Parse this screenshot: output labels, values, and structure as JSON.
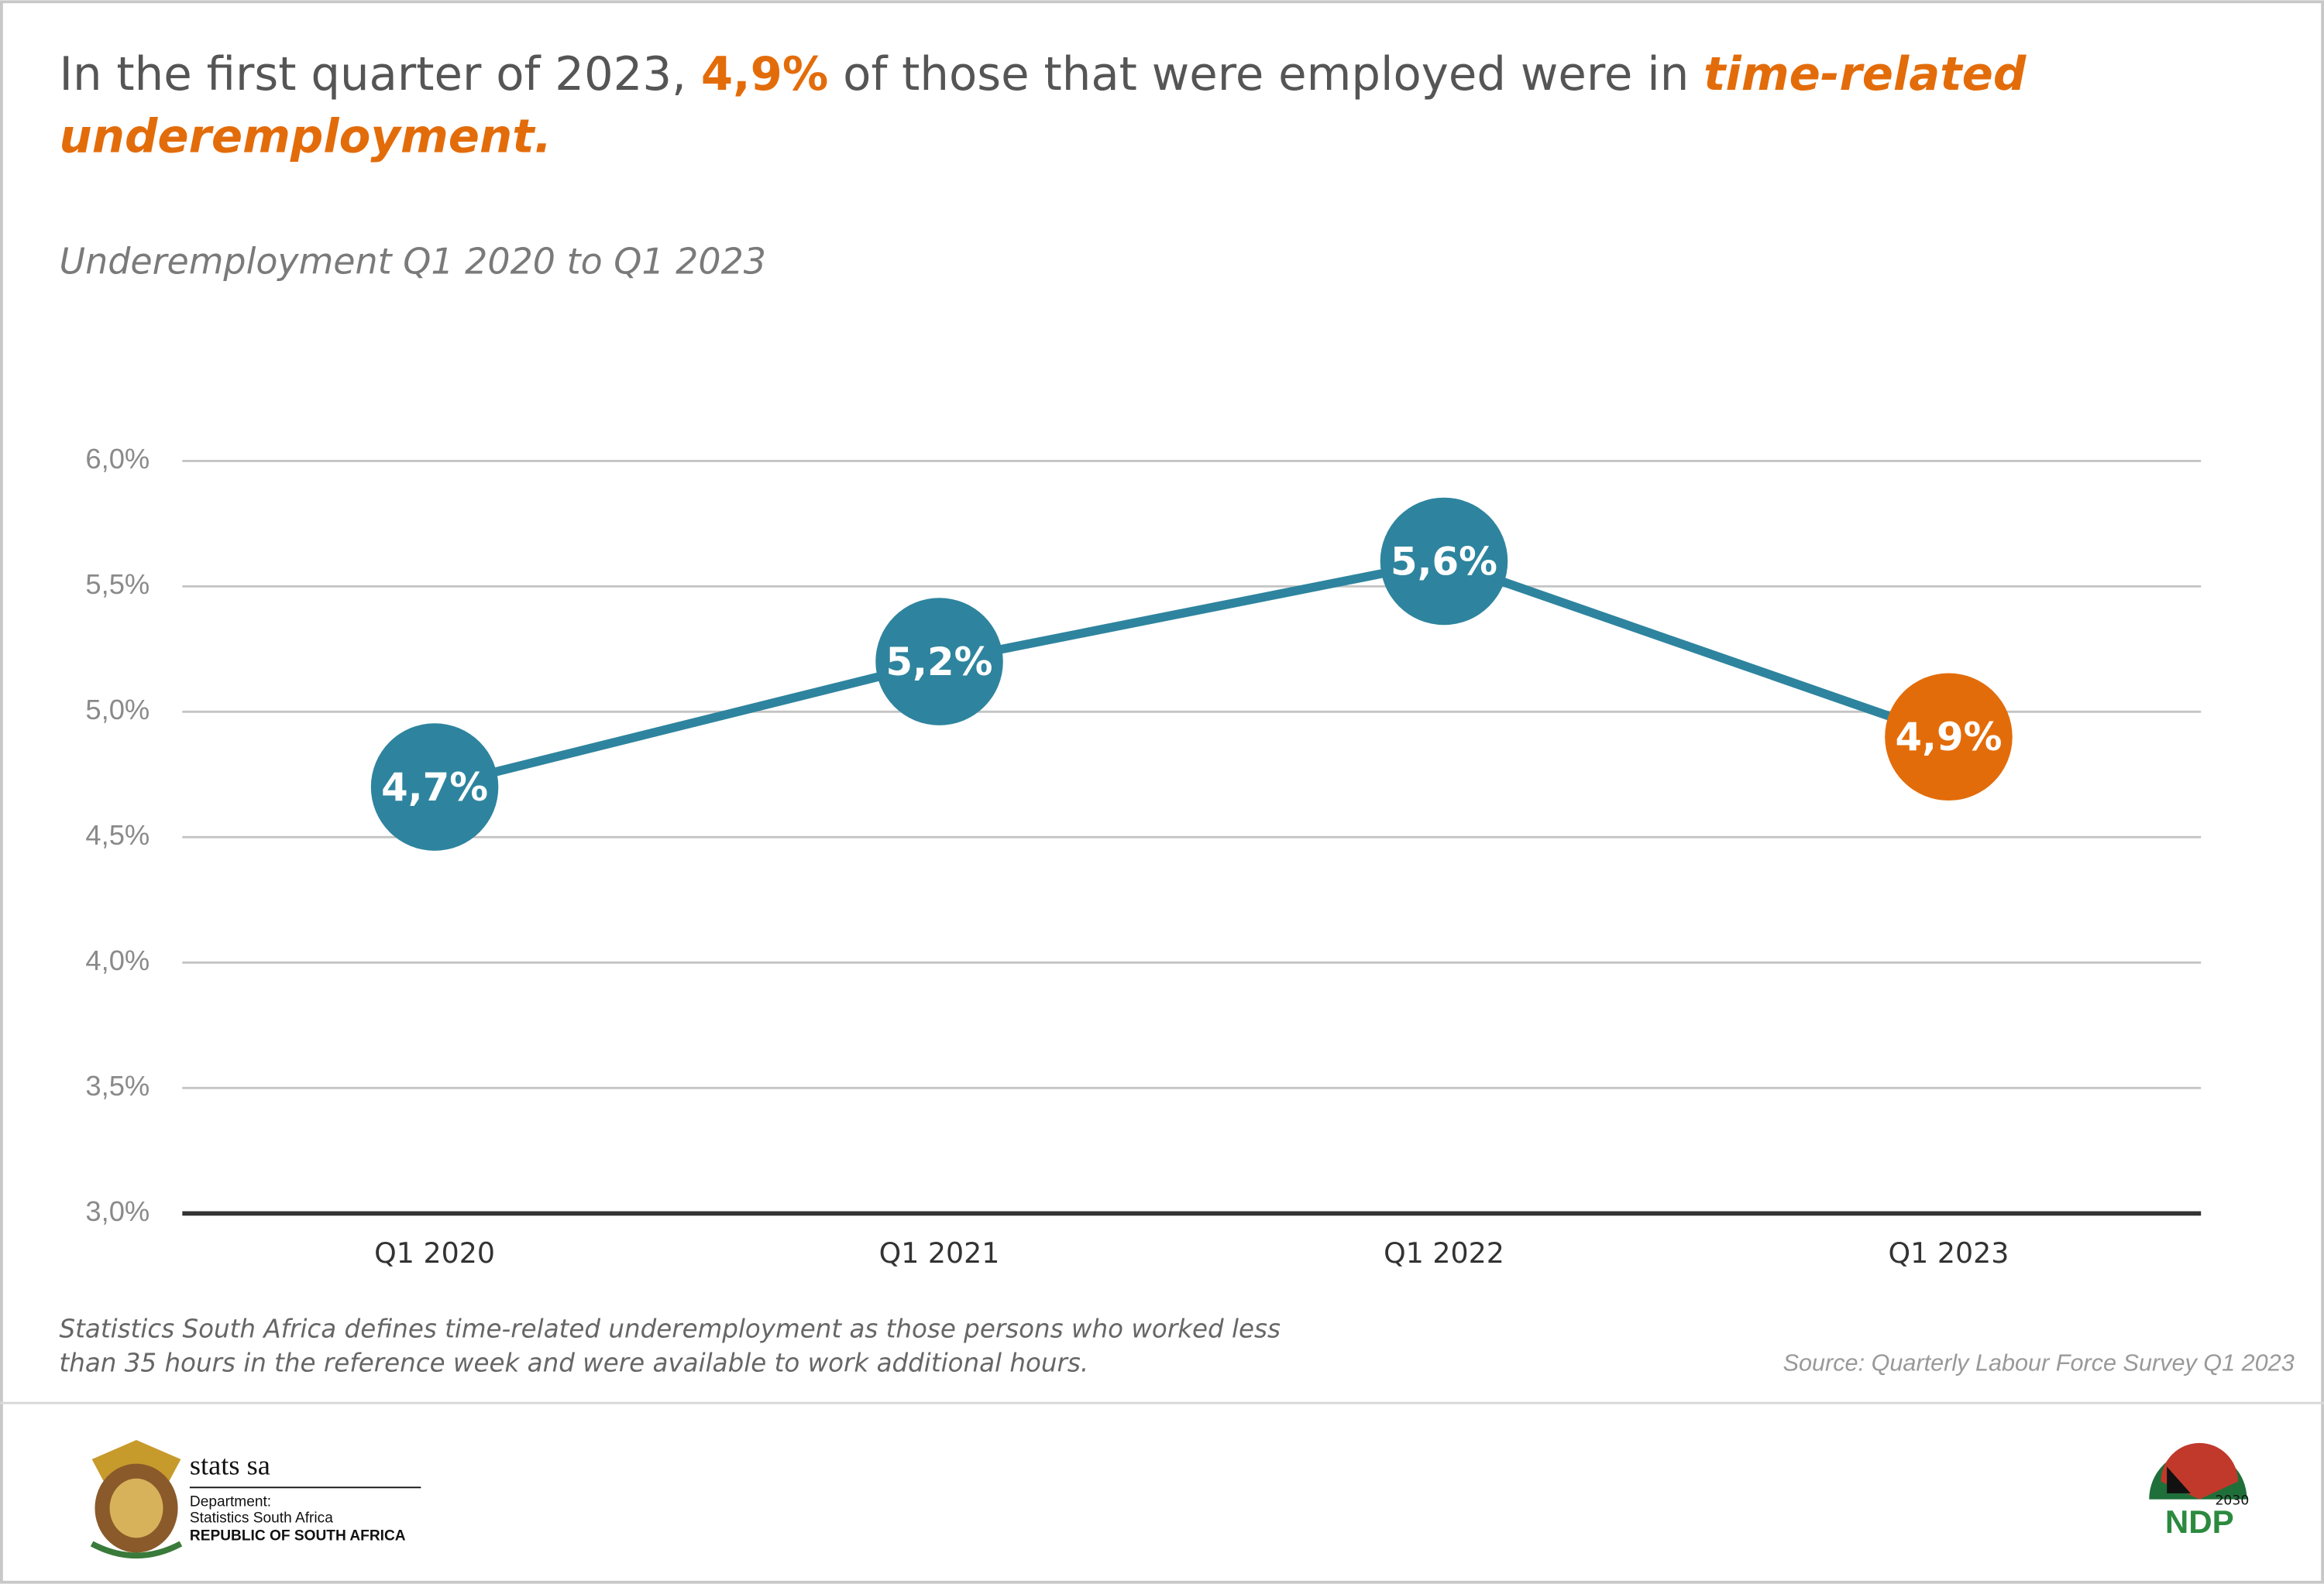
{
  "chart_data": {
    "type": "line",
    "title": [
      "In the first quarter of 2023,",
      "4,9%",
      "of those that were employed were in",
      "time-related",
      "underemployment."
    ],
    "subtitle": "Underemployment Q1 2020 to Q1 2023",
    "categories": [
      "Q1 2020",
      "Q1 2021",
      "Q1 2022",
      "Q1 2023"
    ],
    "series": [
      {
        "color": "#2e849e",
        "point_colors": [
          "#2e849e",
          "#2e849e",
          "#2e849e",
          "#e36c0a"
        ],
        "values": [
          4.7,
          5.2,
          5.6,
          4.9
        ],
        "value_labels": [
          "4,7%",
          "5,2%",
          "5,6%",
          "4,9%"
        ]
      }
    ],
    "ylim": [
      3,
      6
    ],
    "yticks": [
      {
        "value": 3,
        "label": "3,0%"
      },
      {
        "value": 3.5,
        "label": "3,5%"
      },
      {
        "value": 4,
        "label": "4,0%"
      },
      {
        "value": 4.5,
        "label": "4,5%"
      },
      {
        "value": 5,
        "label": "5,0%"
      },
      {
        "value": 5.5,
        "label": "5,5%"
      },
      {
        "value": 6,
        "label": "6,0%"
      }
    ],
    "grid": true,
    "note": [
      "Statistics South Africa defines time-related underemployment as those persons who worked less",
      "than 35 hours in the reference week and were available to work additional hours."
    ],
    "source": "Source: Quarterly Labour Force Survey Q1 2023"
  },
  "footer": {
    "logo": "stats sa",
    "department": "Department:",
    "org": "Statistics South Africa",
    "country": "REPUBLIC OF SOUTH AFRICA",
    "ndp": "NDP",
    "ndp_year": "2030"
  }
}
